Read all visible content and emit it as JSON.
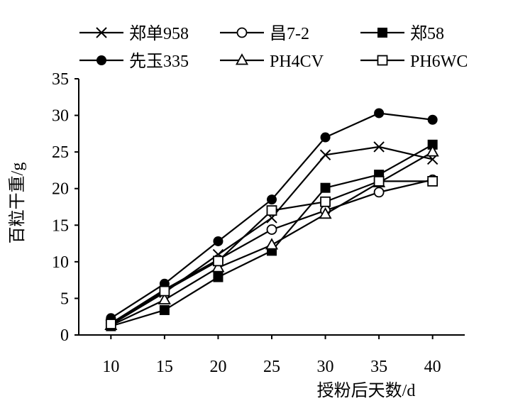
{
  "chart_data": {
    "type": "line",
    "title": "",
    "xlabel": "授粉后天数/d",
    "ylabel": "百粒干重/g",
    "x": [
      10,
      15,
      20,
      25,
      30,
      35,
      40
    ],
    "xlim": [
      7,
      43
    ],
    "ylim": [
      0,
      35
    ],
    "yticks": [
      0,
      5,
      10,
      15,
      20,
      25,
      30,
      35
    ],
    "grid": false,
    "legend_position": "top",
    "series": [
      {
        "name": "郑单958",
        "marker": "x",
        "values": [
          1.4,
          5.8,
          11.0,
          16.0,
          24.6,
          25.7,
          24.0
        ]
      },
      {
        "name": "昌7-2",
        "marker": "circle-open",
        "values": [
          1.6,
          6.2,
          10.3,
          14.4,
          17.0,
          19.5,
          21.2
        ]
      },
      {
        "name": "郑58",
        "marker": "square-filled",
        "values": [
          1.2,
          3.4,
          7.9,
          11.5,
          20.1,
          21.9,
          26.0
        ]
      },
      {
        "name": "先玉335",
        "marker": "circle-filled",
        "values": [
          2.3,
          7.0,
          12.8,
          18.5,
          27.0,
          30.3,
          29.4
        ]
      },
      {
        "name": "PH4CV",
        "marker": "triangle-open",
        "values": [
          1.3,
          4.8,
          9.2,
          12.3,
          16.5,
          20.8,
          25.0
        ]
      },
      {
        "name": "PH6WC",
        "marker": "square-open",
        "values": [
          1.5,
          6.0,
          10.1,
          17.0,
          18.2,
          21.0,
          21.0
        ]
      }
    ]
  }
}
